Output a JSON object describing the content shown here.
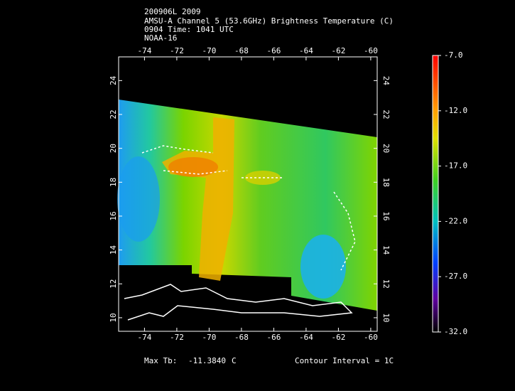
{
  "map": {
    "title_lines": [
      "200906L 2009",
      "AMSU-A Channel 5 (53.6GHz) Brightness Temperature (C)",
      "0904 Time: 1041 UTC",
      "NOAA-16"
    ],
    "lon_lim": [
      -75.6,
      -59.6
    ],
    "lat_lim": [
      9.2,
      25.4
    ],
    "lon_ticks": [
      -74,
      -72,
      -70,
      -68,
      -66,
      -64,
      -62,
      -60
    ],
    "lat_ticks": [
      10,
      12,
      14,
      16,
      18,
      20,
      22,
      24
    ],
    "colorbar_lim": [
      -32,
      -7
    ],
    "colorbar_ticks": [
      {
        "value": -7,
        "label": "-7.0"
      },
      {
        "value": -12,
        "label": "-12.0"
      },
      {
        "value": -17,
        "label": "-17.0"
      },
      {
        "value": -22,
        "label": "-22.0"
      },
      {
        "value": -27,
        "label": "-27.0"
      },
      {
        "value": -32,
        "label": "-32.0"
      }
    ],
    "footer": {
      "max_label": "Max Tb:",
      "max_value": "-11.3840",
      "unit": "C",
      "contour": "Contour Interval = 1C"
    }
  }
}
